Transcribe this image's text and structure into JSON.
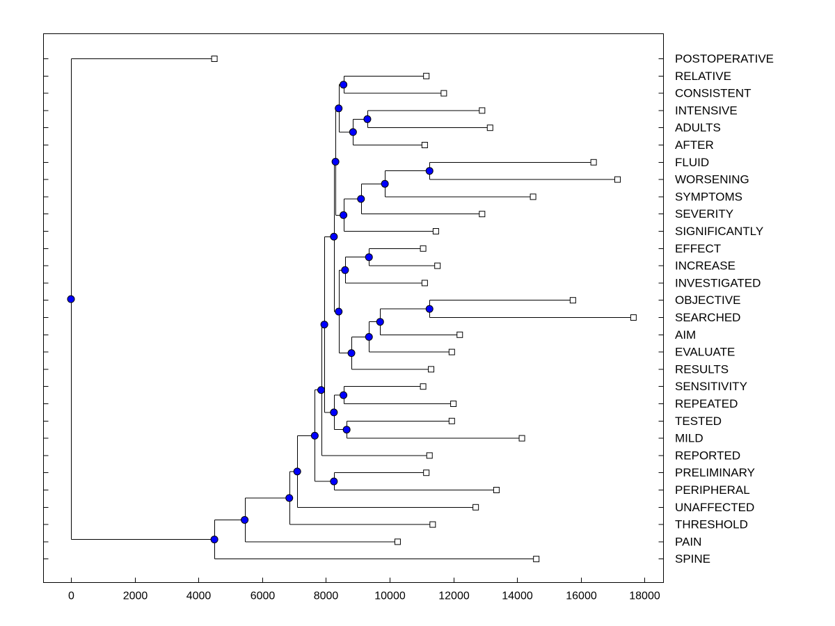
{
  "chart_data": {
    "type": "dendrogram",
    "title": "",
    "xlabel": "",
    "ylabel": "",
    "xlim": [
      -900,
      18500
    ],
    "xticks": [
      0,
      2000,
      4000,
      6000,
      8000,
      10000,
      12000,
      14000,
      16000,
      18000
    ],
    "colors": {
      "node_fill": "#0000ff",
      "line": "#000000",
      "leaf_fill": "#ffffff"
    },
    "leaves": [
      {
        "label": "POSTOPERATIVE",
        "x": 4500
      },
      {
        "label": "RELATIVE",
        "x": 11150
      },
      {
        "label": "CONSISTENT",
        "x": 11700
      },
      {
        "label": "INTENSIVE",
        "x": 12900
      },
      {
        "label": "ADULTS",
        "x": 13150
      },
      {
        "label": "AFTER",
        "x": 11100
      },
      {
        "label": "FLUID",
        "x": 16400
      },
      {
        "label": "WORSENING",
        "x": 17150
      },
      {
        "label": "SYMPTOMS",
        "x": 14500
      },
      {
        "label": "SEVERITY",
        "x": 12900
      },
      {
        "label": "SIGNIFICANTLY",
        "x": 11450
      },
      {
        "label": "EFFECT",
        "x": 11050
      },
      {
        "label": "INCREASE",
        "x": 11500
      },
      {
        "label": "INVESTIGATED",
        "x": 11100
      },
      {
        "label": "OBJECTIVE",
        "x": 15750
      },
      {
        "label": "SEARCHED",
        "x": 17650
      },
      {
        "label": "AIM",
        "x": 12200
      },
      {
        "label": "EVALUATE",
        "x": 11950
      },
      {
        "label": "RESULTS",
        "x": 11300
      },
      {
        "label": "SENSITIVITY",
        "x": 11050
      },
      {
        "label": "REPEATED",
        "x": 12000
      },
      {
        "label": "TESTED",
        "x": 11950
      },
      {
        "label": "MILD",
        "x": 14150
      },
      {
        "label": "REPORTED",
        "x": 11250
      },
      {
        "label": "PRELIMINARY",
        "x": 11150
      },
      {
        "label": "PERIPHERAL",
        "x": 13350
      },
      {
        "label": "UNAFFECTED",
        "x": 12700
      },
      {
        "label": "THRESHOLD",
        "x": 11350
      },
      {
        "label": "PAIN",
        "x": 10250
      },
      {
        "label": "SPINE",
        "x": 14600
      }
    ],
    "nodes": [
      {
        "id": "n_rel_con",
        "x": 8550,
        "children": [
          "L1",
          "L2"
        ]
      },
      {
        "id": "n_int_adu",
        "x": 9300,
        "children": [
          "L3",
          "L4"
        ]
      },
      {
        "id": "n_ia_aft",
        "x": 8850,
        "children": [
          "n_int_adu",
          "L5"
        ]
      },
      {
        "id": "n_rc_iaa",
        "x": 8400,
        "children": [
          "n_rel_con",
          "n_ia_aft"
        ]
      },
      {
        "id": "n_flu_wor",
        "x": 11250,
        "children": [
          "L6",
          "L7"
        ]
      },
      {
        "id": "n_fw_sym",
        "x": 9850,
        "children": [
          "n_flu_wor",
          "L8"
        ]
      },
      {
        "id": "n_fws_sev",
        "x": 9100,
        "children": [
          "n_fw_sym",
          "L9"
        ]
      },
      {
        "id": "n_fwss_sig",
        "x": 8550,
        "children": [
          "n_fws_sev",
          "L10"
        ]
      },
      {
        "id": "n_upper",
        "x": 8300,
        "children": [
          "n_rc_iaa",
          "n_fwss_sig"
        ]
      },
      {
        "id": "n_eff_inc",
        "x": 9350,
        "children": [
          "L11",
          "L12"
        ]
      },
      {
        "id": "n_ei_inv",
        "x": 8600,
        "children": [
          "n_eff_inc",
          "L13"
        ]
      },
      {
        "id": "n_obj_sea",
        "x": 11250,
        "children": [
          "L14",
          "L15"
        ]
      },
      {
        "id": "n_os_aim",
        "x": 9700,
        "children": [
          "n_obj_sea",
          "L16"
        ]
      },
      {
        "id": "n_osa_eva",
        "x": 9350,
        "children": [
          "n_os_aim",
          "L17"
        ]
      },
      {
        "id": "n_osae_res",
        "x": 8800,
        "children": [
          "n_osa_eva",
          "L18"
        ]
      },
      {
        "id": "n_mid",
        "x": 8400,
        "children": [
          "n_ei_inv",
          "n_osae_res"
        ]
      },
      {
        "id": "n_upper_mid",
        "x": 8250,
        "children": [
          "n_upper",
          "n_mid"
        ]
      },
      {
        "id": "n_sen_rep",
        "x": 8550,
        "children": [
          "L19",
          "L20"
        ]
      },
      {
        "id": "n_tes_mil",
        "x": 8650,
        "children": [
          "L21",
          "L22"
        ]
      },
      {
        "id": "n_srtm",
        "x": 8250,
        "children": [
          "n_sen_rep",
          "n_tes_mil"
        ]
      },
      {
        "id": "n_top_core",
        "x": 7950,
        "children": [
          "n_upper_mid",
          "n_srtm"
        ]
      },
      {
        "id": "n_core_rep",
        "x": 7850,
        "children": [
          "n_top_core",
          "L23"
        ]
      },
      {
        "id": "n_pre_per",
        "x": 8250,
        "children": [
          "L24",
          "L25"
        ]
      },
      {
        "id": "n_cr_pp",
        "x": 7650,
        "children": [
          "n_core_rep",
          "n_pre_per"
        ]
      },
      {
        "id": "n_unaff",
        "x": 7100,
        "children": [
          "n_cr_pp",
          "L26"
        ]
      },
      {
        "id": "n_thr",
        "x": 6850,
        "children": [
          "n_unaff",
          "L27"
        ]
      },
      {
        "id": "n_pain",
        "x": 5450,
        "children": [
          "n_thr",
          "L28"
        ]
      },
      {
        "id": "n_spine",
        "x": 4500,
        "children": [
          "n_pain",
          "L29"
        ]
      },
      {
        "id": "n_root",
        "x": 0,
        "children": [
          "L0",
          "n_spine"
        ]
      }
    ]
  }
}
